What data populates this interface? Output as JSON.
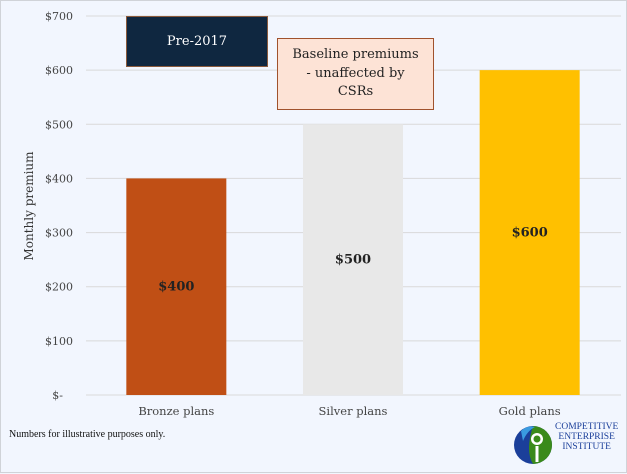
{
  "chart_data": {
    "type": "bar",
    "title": "",
    "xlabel": "",
    "ylabel": "Monthly premium",
    "categories": [
      "Bronze plans",
      "Silver plans",
      "Gold plans"
    ],
    "values": [
      400,
      500,
      600
    ],
    "data_labels": [
      "$400",
      "$500",
      "$600"
    ],
    "colors": [
      "#c04f15",
      "#e8e8e8",
      "#ffc000"
    ],
    "ylim": [
      0,
      700
    ],
    "yticks": [
      0,
      100,
      200,
      300,
      400,
      500,
      600,
      700
    ],
    "ytick_labels": [
      "$-",
      "$100",
      "$200",
      "$300",
      "$400",
      "$500",
      "$600",
      "$700"
    ],
    "grid": true,
    "annotations": [
      "Pre-2017",
      "Baseline premiums - unaffected by CSRs"
    ]
  },
  "footnote": "Numbers for illustrative purposes only.",
  "logo": {
    "text": [
      "COMPETITIVE",
      "ENTERPRISE",
      "INSTITUTE"
    ]
  }
}
